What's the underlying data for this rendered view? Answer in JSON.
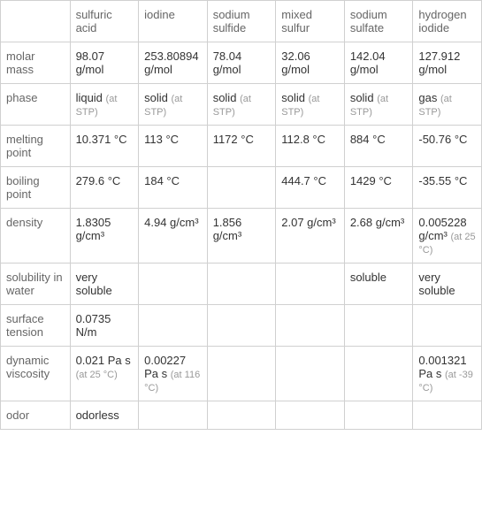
{
  "columns": [
    "sulfuric acid",
    "iodine",
    "sodium sulfide",
    "mixed sulfur",
    "sodium sulfate",
    "hydrogen iodide"
  ],
  "rows": {
    "molar_mass": {
      "label": "molar mass",
      "values": [
        "98.07 g/mol",
        "253.80894 g/mol",
        "78.04 g/mol",
        "32.06 g/mol",
        "142.04 g/mol",
        "127.912 g/mol"
      ],
      "notes": [
        "",
        "",
        "",
        "",
        "",
        ""
      ]
    },
    "phase": {
      "label": "phase",
      "values": [
        "liquid",
        "solid",
        "solid",
        "solid",
        "solid",
        "gas"
      ],
      "notes": [
        "(at STP)",
        "(at STP)",
        "(at STP)",
        "(at STP)",
        "(at STP)",
        "(at STP)"
      ]
    },
    "melting_point": {
      "label": "melting point",
      "values": [
        "10.371 °C",
        "113 °C",
        "1172 °C",
        "112.8 °C",
        "884 °C",
        "-50.76 °C"
      ],
      "notes": [
        "",
        "",
        "",
        "",
        "",
        ""
      ]
    },
    "boiling_point": {
      "label": "boiling point",
      "values": [
        "279.6 °C",
        "184 °C",
        "",
        "444.7 °C",
        "1429 °C",
        "-35.55 °C"
      ],
      "notes": [
        "",
        "",
        "",
        "",
        "",
        ""
      ]
    },
    "density": {
      "label": "density",
      "values": [
        "1.8305 g/cm³",
        "4.94 g/cm³",
        "1.856 g/cm³",
        "2.07 g/cm³",
        "2.68 g/cm³",
        "0.005228 g/cm³"
      ],
      "notes": [
        "",
        "",
        "",
        "",
        "",
        "(at 25 °C)"
      ]
    },
    "solubility": {
      "label": "solubility in water",
      "values": [
        "very soluble",
        "",
        "",
        "",
        "soluble",
        "very soluble"
      ],
      "notes": [
        "",
        "",
        "",
        "",
        "",
        ""
      ]
    },
    "surface_tension": {
      "label": "surface tension",
      "values": [
        "0.0735 N/m",
        "",
        "",
        "",
        "",
        ""
      ],
      "notes": [
        "",
        "",
        "",
        "",
        "",
        ""
      ]
    },
    "dynamic_viscosity": {
      "label": "dynamic viscosity",
      "values": [
        "0.021 Pa s",
        "0.00227 Pa s",
        "",
        "",
        "",
        "0.001321 Pa s"
      ],
      "notes": [
        "(at 25 °C)",
        "(at 116 °C)",
        "",
        "",
        "",
        "(at -39 °C)"
      ]
    },
    "odor": {
      "label": "odor",
      "values": [
        "odorless",
        "",
        "",
        "",
        "",
        ""
      ],
      "notes": [
        "",
        "",
        "",
        "",
        "",
        ""
      ]
    }
  },
  "row_order": [
    "molar_mass",
    "phase",
    "melting_point",
    "boiling_point",
    "density",
    "solubility",
    "surface_tension",
    "dynamic_viscosity",
    "odor"
  ]
}
